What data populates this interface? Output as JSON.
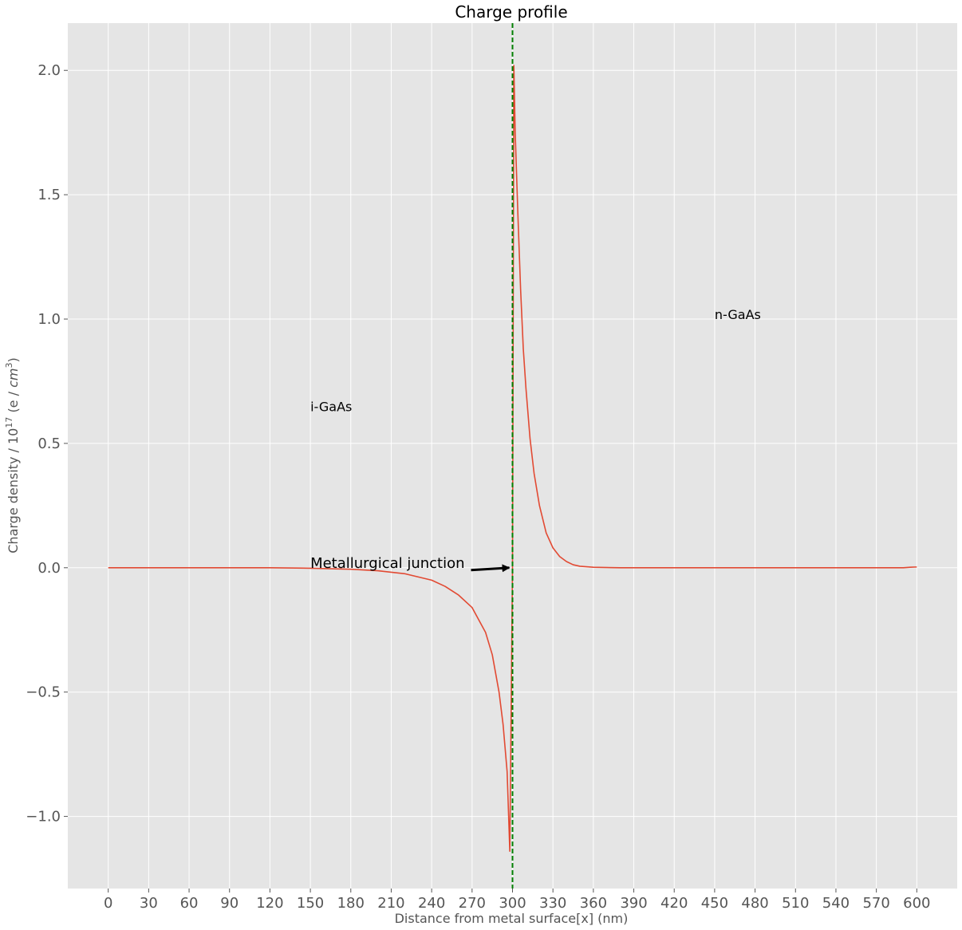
{
  "chart_data": {
    "type": "line",
    "title": "Charge profile",
    "xlabel": "Distance from metal surface[x] (nm)",
    "ylabel_main": "Charge density / 10",
    "ylabel_sup": "17",
    "ylabel_tail": " (e / ",
    "ylabel_unit": "cm",
    "ylabel_unit_sup": "3",
    "ylabel_close": ")",
    "xlim": [
      -30,
      630
    ],
    "ylim": [
      -1.29,
      2.19
    ],
    "xticks": [
      0,
      30,
      60,
      90,
      120,
      150,
      180,
      210,
      240,
      270,
      300,
      330,
      360,
      390,
      420,
      450,
      480,
      510,
      540,
      570,
      600
    ],
    "yticks": [
      -1.0,
      -0.5,
      0.0,
      0.5,
      1.0,
      1.5,
      2.0
    ],
    "ytick_labels": [
      "−1.0",
      "−0.5",
      "0.0",
      "0.5",
      "1.0",
      "1.5",
      "2.0"
    ],
    "grid": true,
    "background": "#e5e5e5",
    "series": [
      {
        "color": "#e24a33",
        "x": [
          0,
          60,
          120,
          150,
          180,
          200,
          220,
          240,
          250,
          260,
          270,
          280,
          285,
          290,
          293,
          296,
          298,
          300,
          301,
          302,
          304,
          306,
          308,
          310,
          313,
          316,
          320,
          325,
          330,
          335,
          340,
          345,
          350,
          360,
          380,
          420,
          480,
          540,
          590,
          595,
          600
        ],
        "y": [
          0.0,
          0.0,
          0.0,
          -0.002,
          -0.006,
          -0.012,
          -0.024,
          -0.05,
          -0.075,
          -0.11,
          -0.16,
          -0.26,
          -0.35,
          -0.5,
          -0.63,
          -0.82,
          -1.14,
          0.0,
          2.02,
          1.75,
          1.42,
          1.12,
          0.88,
          0.72,
          0.52,
          0.38,
          0.25,
          0.14,
          0.08,
          0.045,
          0.025,
          0.012,
          0.006,
          0.002,
          0.0,
          0.0,
          0.0,
          0.0,
          0.0,
          0.002,
          0.003
        ]
      }
    ],
    "vline": {
      "x": 300,
      "color": "#007f00",
      "style": "dashed"
    },
    "annotations": [
      {
        "text": "i-GaAs",
        "x": 150,
        "y": 0.63
      },
      {
        "text": "n-GaAs",
        "x": 450,
        "y": 1.0
      }
    ],
    "arrow_annotation": {
      "text": "Metallurgical junction",
      "text_x": 150,
      "text_y": 0.0,
      "tip_x": 300,
      "tip_y": 0.0
    }
  }
}
